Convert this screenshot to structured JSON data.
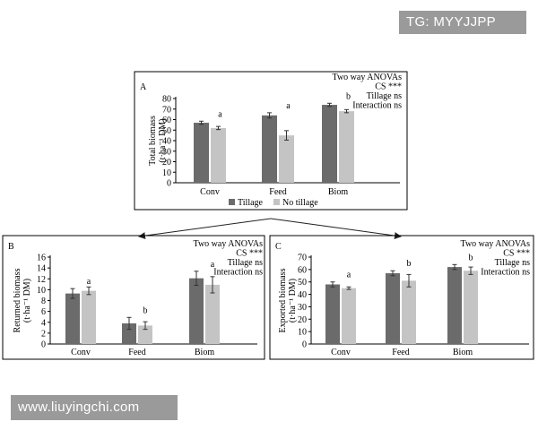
{
  "overlays": {
    "tg_text": "TG: MYYJJPP",
    "url_text": "www.liuyingchi.com"
  },
  "colors": {
    "tillage": "#6b6b6b",
    "no_tillage": "#c4c4c4",
    "error_bar": "#333333",
    "frame": "#000000",
    "overlay_bg": "#9a9a9a"
  },
  "chart_data": [
    {
      "panel": "A",
      "type": "bar",
      "ylabel_lines": [
        "Total biomass",
        "(t·ha⁻¹ DM)"
      ],
      "categories": [
        "Conv",
        "Feed",
        "Biom"
      ],
      "ylim": [
        0,
        80
      ],
      "yticks": [
        0,
        10,
        20,
        30,
        40,
        50,
        60,
        70,
        80
      ],
      "series": [
        {
          "name": "Tillage",
          "values": [
            57,
            64,
            74
          ],
          "errors": [
            1.5,
            2.5,
            1.5
          ]
        },
        {
          "name": "No tillage",
          "values": [
            52,
            45,
            68
          ],
          "errors": [
            1.5,
            4.5,
            1.5
          ]
        }
      ],
      "letters": [
        "a",
        "a",
        "b"
      ],
      "annotation_lines": [
        "Two way ANOVAs",
        "CS ***",
        "Tillage ns",
        "Interaction ns"
      ],
      "legend_placement": "bottom"
    },
    {
      "panel": "B",
      "type": "bar",
      "ylabel_lines": [
        "Returned biomass",
        "(t·ha⁻¹ DM)"
      ],
      "categories": [
        "Conv",
        "Feed",
        "Biom"
      ],
      "ylim": [
        0,
        16
      ],
      "yticks": [
        0,
        2,
        4,
        6,
        8,
        10,
        12,
        14,
        16
      ],
      "series": [
        {
          "name": "Tillage",
          "values": [
            9.3,
            3.8,
            12.1
          ],
          "errors": [
            0.9,
            1.1,
            1.3
          ]
        },
        {
          "name": "No tillage",
          "values": [
            9.8,
            3.4,
            10.9
          ],
          "errors": [
            0.7,
            0.7,
            1.5
          ]
        }
      ],
      "letters": [
        "a",
        "b",
        "a"
      ],
      "annotation_lines": [
        "Two way ANOVAs",
        "CS ***",
        "Tillage ns",
        "Interaction ns"
      ]
    },
    {
      "panel": "C",
      "type": "bar",
      "ylabel_lines": [
        "Exported biomass",
        "(t·ha⁻¹ DM)"
      ],
      "categories": [
        "Conv",
        "Feed",
        "Biom"
      ],
      "ylim": [
        0,
        70
      ],
      "yticks": [
        0,
        10,
        20,
        30,
        40,
        50,
        60,
        70
      ],
      "series": [
        {
          "name": "Tillage",
          "values": [
            48,
            57,
            62
          ],
          "errors": [
            2,
            2,
            2
          ]
        },
        {
          "name": "No tillage",
          "values": [
            45,
            51,
            59
          ],
          "errors": [
            1,
            5,
            3
          ]
        }
      ],
      "letters": [
        "a",
        "b",
        "b"
      ],
      "annotation_lines": [
        "Two way ANOVAs",
        "CS ***",
        "Tillage ns",
        "Interaction ns"
      ]
    }
  ]
}
